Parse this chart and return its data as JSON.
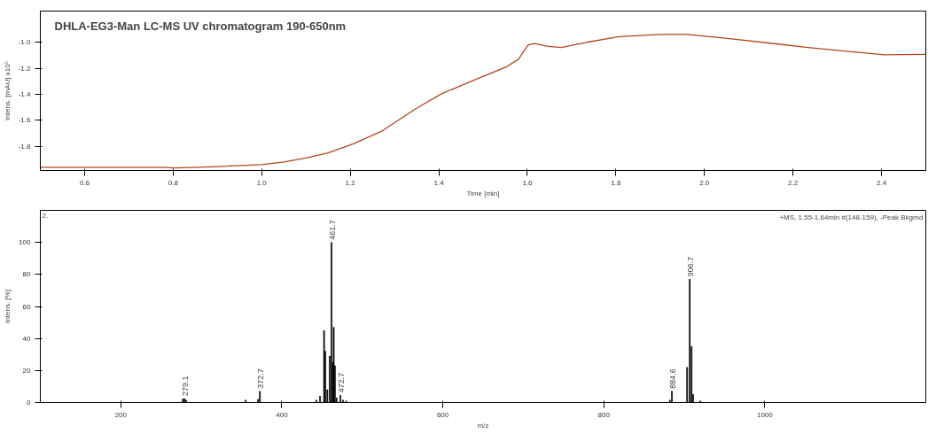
{
  "chart_data": [
    {
      "type": "line",
      "title": "DHLA-EG3-Man LC-MS UV chromatogram 190-650nm",
      "xlabel": "Time [min]",
      "ylabel": "Intens. [mAU] x10⁵",
      "x": [
        0.5,
        0.6,
        0.7,
        0.78,
        0.8,
        0.9,
        1.0,
        1.05,
        1.098,
        1.15,
        1.207,
        1.27,
        1.348,
        1.407,
        1.48,
        1.552,
        1.58,
        1.602,
        1.616,
        1.644,
        1.676,
        1.734,
        1.807,
        1.898,
        1.962,
        2.052,
        2.144,
        2.234,
        2.326,
        2.407,
        2.5
      ],
      "series": [
        {
          "color": "#b5451b",
          "values": [
            -1.96,
            -1.96,
            -1.96,
            -1.96,
            -1.965,
            -1.955,
            -1.94,
            -1.92,
            -1.89,
            -1.85,
            -1.78,
            -1.685,
            -1.51,
            -1.394,
            -1.29,
            -1.19,
            -1.13,
            -1.02,
            -1.01,
            -1.03,
            -1.04,
            -1.0,
            -0.957,
            -0.94,
            -0.94,
            -0.97,
            -1.005,
            -1.04,
            -1.07,
            -1.096,
            -1.093
          ]
        }
      ],
      "xlim": [
        0.5,
        2.5
      ],
      "ylim": [
        -1.985,
        -0.76
      ],
      "xticks": [
        {
          "value": 0.6,
          "label": "0.6"
        },
        {
          "value": 0.8,
          "label": "0.8"
        },
        {
          "value": 1.0,
          "label": "1.0"
        },
        {
          "value": 1.2,
          "label": "1.2"
        },
        {
          "value": 1.4,
          "label": "1.4"
        },
        {
          "value": 1.6,
          "label": "1.6"
        },
        {
          "value": 1.8,
          "label": "1.8"
        },
        {
          "value": 2.0,
          "label": "2.0"
        },
        {
          "value": 2.2,
          "label": "2.2"
        },
        {
          "value": 2.4,
          "label": "2.4"
        }
      ],
      "yticks": [
        {
          "value": -1.8,
          "label": "-1.8"
        },
        {
          "value": -1.6,
          "label": "-1.6"
        },
        {
          "value": -1.4,
          "label": "-1.4"
        },
        {
          "value": -1.2,
          "label": "-1.2"
        },
        {
          "value": -1.0,
          "label": "-1.0"
        }
      ],
      "grid": false
    },
    {
      "type": "bar",
      "xlabel": "m/z",
      "ylabel": "Intens. [%]",
      "annotations": [
        "2.",
        "+MS, 1.55-1.64min #(148-159), -Peak Bkgrnd",
        {
          "text": "279.1",
          "x": 279.1,
          "y": 2.5
        },
        {
          "text": "372.7",
          "x": 372.7,
          "y": 7
        },
        {
          "text": "461.7",
          "x": 461.7,
          "y": 100
        },
        {
          "text": "472.7",
          "x": 472.7,
          "y": 4.5
        },
        {
          "text": "884.6",
          "x": 884.6,
          "y": 7
        },
        {
          "text": "906.7",
          "x": 906.7,
          "y": 77
        }
      ],
      "x": [
        277.0,
        279.1,
        281.0,
        355.0,
        370.5,
        372.7,
        443.0,
        447.5,
        452.5,
        454.0,
        456.5,
        459.5,
        461.7,
        463.0,
        464.5,
        466.0,
        468.0,
        472.7,
        476.0,
        480.0,
        882.0,
        884.6,
        903.5,
        906.7,
        909.0,
        911.0,
        920.0
      ],
      "series": [
        {
          "color": "#000000",
          "values": [
            2.2,
            2.5,
            1.5,
            1.5,
            2,
            7,
            1.5,
            4,
            45,
            32,
            8,
            29,
            100,
            25,
            47,
            23,
            3,
            4.5,
            1.5,
            1,
            1.5,
            7,
            22,
            77,
            35,
            5,
            1
          ]
        }
      ],
      "xlim": [
        100,
        1200
      ],
      "ylim": [
        0,
        120
      ],
      "xticks": [
        200,
        400,
        600,
        800,
        1000
      ],
      "yticks": [
        0,
        20,
        40,
        60,
        80,
        100
      ],
      "grid": false
    }
  ]
}
